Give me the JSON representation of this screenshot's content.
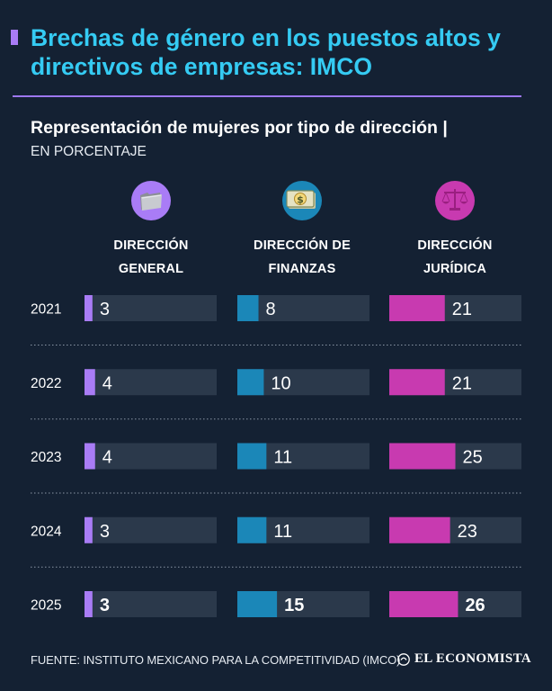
{
  "header": {
    "title": "Brechas de género en los puestos altos y directivos de empresas: IMCO",
    "subtitle": "Representación de mujeres por tipo de dirección |",
    "unit": "EN PORCENTAJE"
  },
  "columns": [
    {
      "label": "DIRECCIÓN\nGENERAL",
      "icon": "folder-icon"
    },
    {
      "label": "DIRECCIÓN DE\nFINANZAS",
      "icon": "money-icon"
    },
    {
      "label": "DIRECCIÓN\nJURÍDICA",
      "icon": "scales-icon"
    }
  ],
  "footer": {
    "source": "FUENTE: INSTITUTO MEXICANO PARA LA COMPETITIVIDAD (IMCO)",
    "brand": "EL ECONOMISTA"
  },
  "colors": {
    "background": "#142133",
    "title": "#35cbf3",
    "general": "#a97cf6",
    "finanzas": "#1b87b8",
    "juridica": "#c83ab0",
    "track": "#2b394b"
  },
  "chart_data": {
    "type": "bar",
    "categories": [
      "2021",
      "2022",
      "2023",
      "2024",
      "2025"
    ],
    "series": [
      {
        "name": "DIRECCIÓN GENERAL",
        "values": [
          3,
          4,
          4,
          3,
          3
        ]
      },
      {
        "name": "DIRECCIÓN DE FINANZAS",
        "values": [
          8,
          10,
          11,
          11,
          15
        ]
      },
      {
        "name": "DIRECCIÓN JURÍDICA",
        "values": [
          21,
          21,
          25,
          23,
          26
        ]
      }
    ],
    "ylim": [
      0,
      50
    ]
  }
}
